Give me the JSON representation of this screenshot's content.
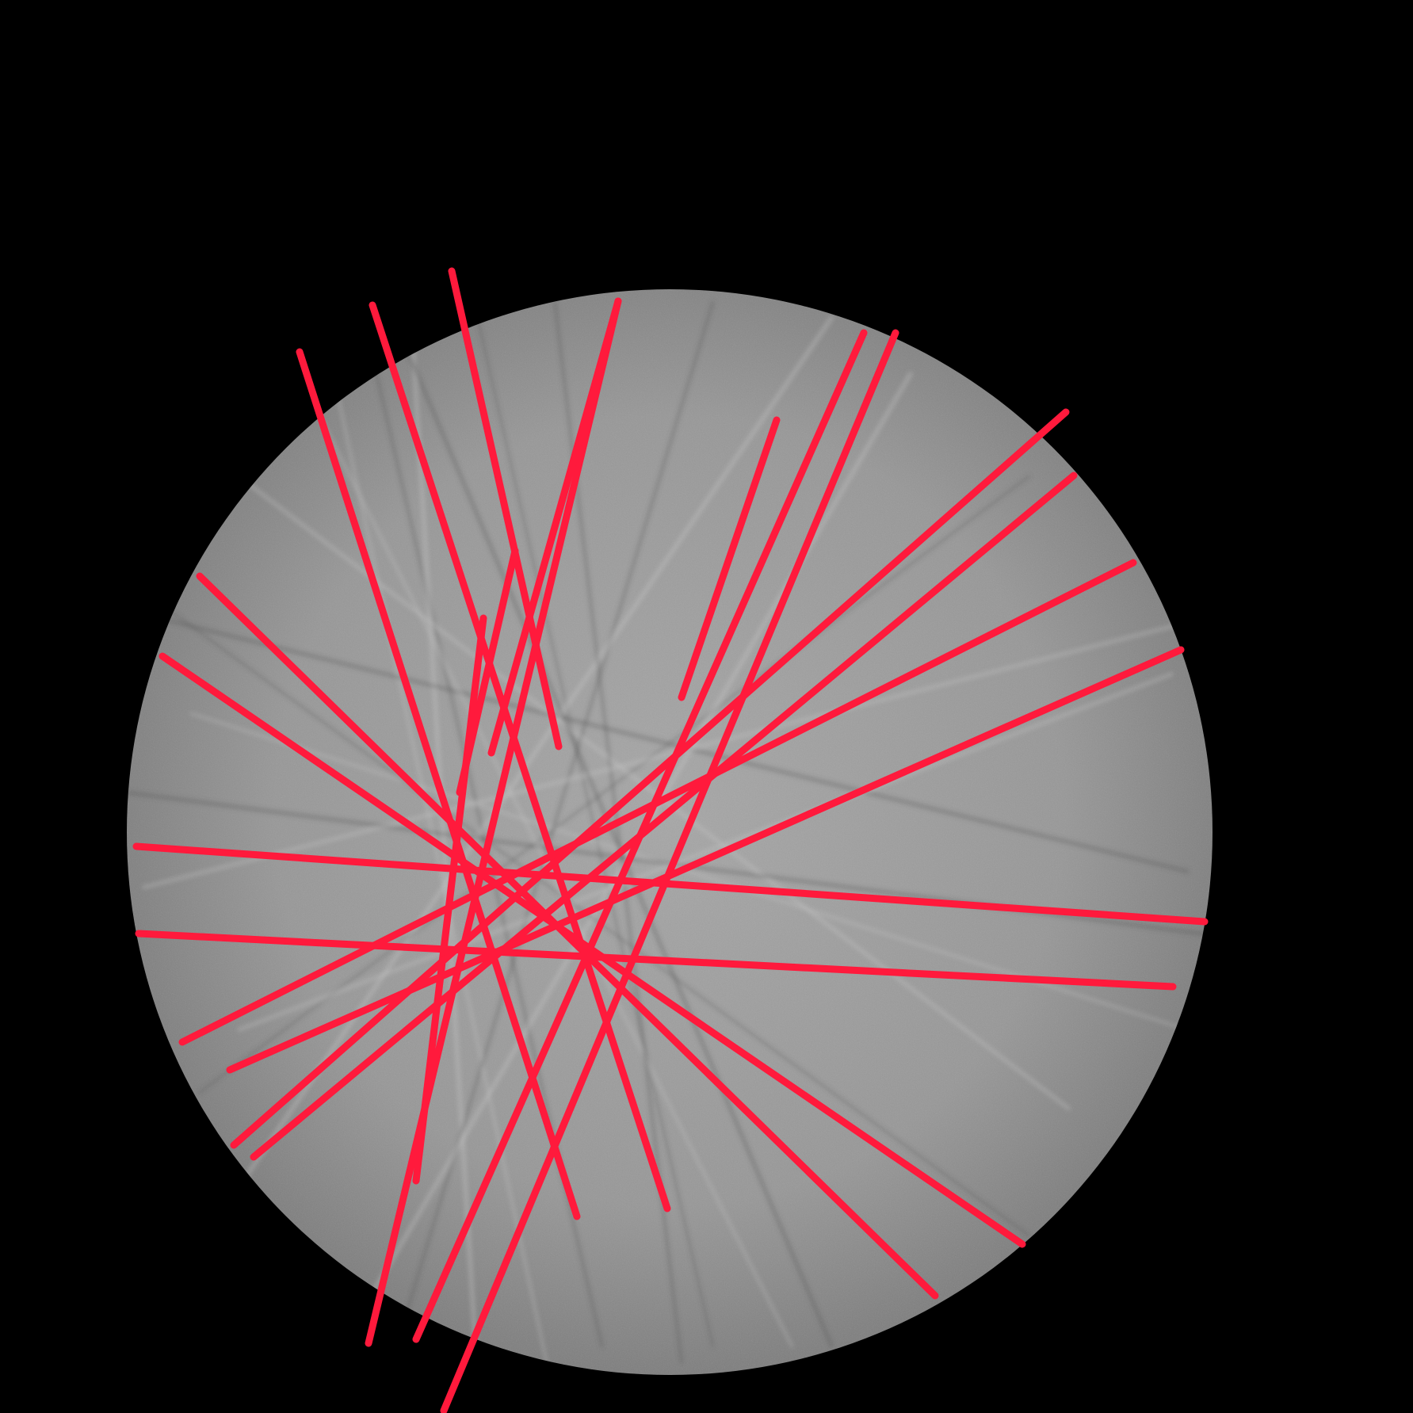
{
  "colors": {
    "background": "#000000",
    "disc_center": "#a6a6a6",
    "disc_mid": "#979797",
    "disc_edge": "#7d7d7d",
    "streak_light": "#d2d2d2",
    "streak_dark": "#4a4a4a",
    "overlay_line": "#ff1a3c"
  },
  "overlay": {
    "line_count": 18
  }
}
